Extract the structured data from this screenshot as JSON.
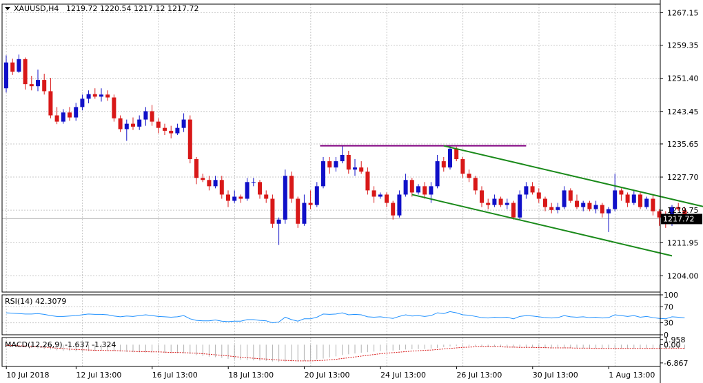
{
  "header": {
    "symbol": "XAUUSD,H4",
    "ohlc": "1219.72 1220.54 1217.12 1217.72"
  },
  "current_price_label": "1217.72",
  "colors": {
    "bull": "#1010c8",
    "bear": "#d81818",
    "grid": "#c8c8c8",
    "trend_green": "#1a8a1a",
    "resistance_purple": "#800080",
    "rsi_line": "#1e90ff",
    "macd_signal": "#d81818",
    "macd_hist": "#b0b0b0"
  },
  "chart_data": [
    {
      "type": "candlestick",
      "title": "XAUUSD,H4",
      "y_ticks": [
        "1267.15",
        "1259.35",
        "1251.40",
        "1243.45",
        "1235.65",
        "1227.70",
        "1219.75",
        "1211.95",
        "1204.00"
      ],
      "ylim": [
        1200.1,
        1269.2
      ],
      "x_ticks": [
        "10 Jul 2018",
        "12 Jul 13:00",
        "16 Jul 13:00",
        "18 Jul 13:00",
        "20 Jul 13:00",
        "24 Jul 13:00",
        "26 Jul 13:00",
        "30 Jul 13:00",
        "1 Aug 13:00"
      ],
      "grid": true,
      "candles": [
        [
          1249.0,
          1256.9,
          1248.0,
          1255.2
        ],
        [
          1255.2,
          1256.1,
          1252.2,
          1253.0
        ],
        [
          1253.0,
          1257.1,
          1252.7,
          1256.0
        ],
        [
          1256.0,
          1256.4,
          1248.7,
          1250.0
        ],
        [
          1250.0,
          1252.0,
          1248.5,
          1249.5
        ],
        [
          1249.5,
          1253.5,
          1248.3,
          1251.0
        ],
        [
          1251.0,
          1252.5,
          1247.5,
          1248.3
        ],
        [
          1248.3,
          1251.5,
          1241.8,
          1242.5
        ],
        [
          1242.5,
          1244.5,
          1240.4,
          1241.0
        ],
        [
          1241.0,
          1244.0,
          1240.5,
          1243.2
        ],
        [
          1243.2,
          1244.5,
          1241.2,
          1242.0
        ],
        [
          1242.0,
          1245.5,
          1241.2,
          1244.5
        ],
        [
          1244.5,
          1247.5,
          1243.7,
          1246.5
        ],
        [
          1246.5,
          1248.5,
          1245.4,
          1247.6
        ],
        [
          1247.6,
          1249.0,
          1246.5,
          1247.0
        ],
        [
          1247.0,
          1249.0,
          1245.8,
          1247.5
        ],
        [
          1247.5,
          1248.5,
          1246.0,
          1246.8
        ],
        [
          1246.8,
          1247.5,
          1241.0,
          1241.8
        ],
        [
          1241.8,
          1242.5,
          1238.5,
          1239.2
        ],
        [
          1239.2,
          1241.5,
          1236.4,
          1240.5
        ],
        [
          1240.5,
          1242.0,
          1239.0,
          1239.8
        ],
        [
          1239.8,
          1242.5,
          1239.0,
          1241.5
        ],
        [
          1241.5,
          1244.5,
          1240.0,
          1243.5
        ],
        [
          1243.5,
          1245.0,
          1240.0,
          1241.0
        ],
        [
          1241.0,
          1241.8,
          1238.2,
          1239.5
        ],
        [
          1239.5,
          1240.5,
          1237.8,
          1238.8
        ],
        [
          1238.8,
          1240.0,
          1237.0,
          1238.2
        ],
        [
          1238.2,
          1240.5,
          1237.8,
          1239.5
        ],
        [
          1239.5,
          1243.0,
          1238.5,
          1241.5
        ],
        [
          1241.5,
          1242.5,
          1231.0,
          1232.0
        ],
        [
          1232.0,
          1232.5,
          1226.0,
          1227.5
        ],
        [
          1227.5,
          1228.5,
          1226.5,
          1227.0
        ],
        [
          1227.0,
          1228.0,
          1224.5,
          1225.5
        ],
        [
          1225.5,
          1228.0,
          1225.0,
          1227.0
        ],
        [
          1227.0,
          1228.0,
          1222.5,
          1223.5
        ],
        [
          1223.5,
          1224.5,
          1220.5,
          1222.0
        ],
        [
          1222.0,
          1224.5,
          1221.5,
          1223.0
        ],
        [
          1223.0,
          1223.5,
          1221.5,
          1222.5
        ],
        [
          1222.5,
          1227.5,
          1222.0,
          1226.5
        ],
        [
          1226.5,
          1227.5,
          1225.5,
          1226.5
        ],
        [
          1226.5,
          1227.0,
          1222.5,
          1223.5
        ],
        [
          1223.5,
          1224.5,
          1221.5,
          1222.5
        ],
        [
          1222.5,
          1223.5,
          1215.5,
          1216.5
        ],
        [
          1216.5,
          1218.0,
          1211.4,
          1217.5
        ],
        [
          1217.5,
          1229.5,
          1216.5,
          1228.0
        ],
        [
          1228.0,
          1229.0,
          1221.5,
          1222.5
        ],
        [
          1222.5,
          1223.0,
          1215.5,
          1216.5
        ],
        [
          1216.5,
          1223.5,
          1216.0,
          1221.5
        ],
        [
          1221.5,
          1224.5,
          1220.0,
          1221.0
        ],
        [
          1221.0,
          1226.5,
          1220.5,
          1225.5
        ],
        [
          1225.5,
          1232.5,
          1225.0,
          1231.5
        ],
        [
          1231.5,
          1232.5,
          1228.5,
          1230.0
        ],
        [
          1230.0,
          1232.5,
          1229.0,
          1231.5
        ],
        [
          1231.5,
          1235.2,
          1231.0,
          1233.0
        ],
        [
          1233.0,
          1234.0,
          1228.5,
          1229.5
        ],
        [
          1229.5,
          1232.0,
          1228.0,
          1230.0
        ],
        [
          1230.0,
          1231.5,
          1228.5,
          1229.0
        ],
        [
          1229.0,
          1230.0,
          1223.5,
          1224.5
        ],
        [
          1224.5,
          1225.5,
          1221.5,
          1223.0
        ],
        [
          1223.0,
          1224.0,
          1222.5,
          1223.5
        ],
        [
          1223.5,
          1224.0,
          1220.5,
          1221.5
        ],
        [
          1221.5,
          1222.0,
          1217.5,
          1218.5
        ],
        [
          1218.5,
          1224.5,
          1218.0,
          1223.5
        ],
        [
          1223.5,
          1228.5,
          1223.0,
          1227.0
        ],
        [
          1227.0,
          1227.5,
          1223.0,
          1224.0
        ],
        [
          1224.0,
          1226.0,
          1223.5,
          1225.5
        ],
        [
          1225.5,
          1226.5,
          1222.5,
          1223.5
        ],
        [
          1223.5,
          1226.5,
          1221.5,
          1225.5
        ],
        [
          1225.5,
          1233.0,
          1225.0,
          1231.5
        ],
        [
          1231.5,
          1232.5,
          1229.0,
          1230.0
        ],
        [
          1230.0,
          1235.2,
          1229.5,
          1234.5
        ],
        [
          1234.5,
          1235.0,
          1231.5,
          1232.0
        ],
        [
          1232.0,
          1232.5,
          1227.5,
          1228.5
        ],
        [
          1228.5,
          1229.5,
          1226.5,
          1227.5
        ],
        [
          1227.5,
          1228.0,
          1223.5,
          1224.5
        ],
        [
          1224.5,
          1225.5,
          1220.5,
          1221.5
        ],
        [
          1221.5,
          1222.5,
          1220.0,
          1221.0
        ],
        [
          1221.0,
          1223.5,
          1220.5,
          1222.5
        ],
        [
          1222.5,
          1223.0,
          1220.5,
          1221.0
        ],
        [
          1221.0,
          1222.5,
          1220.0,
          1221.5
        ],
        [
          1221.5,
          1222.0,
          1217.5,
          1218.0
        ],
        [
          1218.0,
          1224.5,
          1217.5,
          1223.5
        ],
        [
          1223.5,
          1226.5,
          1222.5,
          1225.5
        ],
        [
          1225.5,
          1226.5,
          1223.5,
          1224.0
        ],
        [
          1224.0,
          1225.0,
          1221.5,
          1222.5
        ],
        [
          1222.5,
          1223.0,
          1219.5,
          1220.5
        ],
        [
          1220.5,
          1221.5,
          1219.0,
          1219.8
        ],
        [
          1219.8,
          1221.5,
          1219.0,
          1220.5
        ],
        [
          1220.5,
          1225.5,
          1220.0,
          1224.5
        ],
        [
          1224.5,
          1225.0,
          1221.5,
          1222.0
        ],
        [
          1222.0,
          1223.5,
          1220.0,
          1220.5
        ],
        [
          1220.5,
          1222.0,
          1219.5,
          1221.5
        ],
        [
          1221.5,
          1222.0,
          1219.5,
          1220.0
        ],
        [
          1220.0,
          1222.0,
          1219.0,
          1221.0
        ],
        [
          1221.0,
          1221.5,
          1218.0,
          1219.0
        ],
        [
          1219.0,
          1220.5,
          1214.5,
          1220.0
        ],
        [
          1220.0,
          1228.5,
          1219.5,
          1224.5
        ],
        [
          1224.5,
          1225.0,
          1222.0,
          1223.5
        ],
        [
          1223.5,
          1224.0,
          1220.5,
          1221.5
        ],
        [
          1221.5,
          1224.5,
          1221.0,
          1223.5
        ],
        [
          1223.5,
          1224.0,
          1220.0,
          1220.5
        ],
        [
          1220.5,
          1223.0,
          1220.0,
          1222.5
        ],
        [
          1222.5,
          1223.5,
          1218.5,
          1219.5
        ],
        [
          1219.5,
          1220.0,
          1216.0,
          1218.0
        ],
        [
          1218.0,
          1219.5,
          1215.5,
          1216.5
        ],
        [
          1216.5,
          1221.0,
          1216.0,
          1220.5
        ],
        [
          1220.5,
          1221.5,
          1219.5,
          1220.0
        ],
        [
          1219.72,
          1220.54,
          1217.12,
          1217.72
        ]
      ],
      "lines": [
        {
          "label": "resistance",
          "color": "#800080",
          "points": [
            [
              49.5,
              1235.2
            ],
            [
              82,
              1235.2
            ]
          ]
        },
        {
          "label": "channel-upper",
          "color": "#1a8a1a",
          "points": [
            [
              69,
              1235.2
            ],
            [
              110,
              1220.6
            ]
          ]
        },
        {
          "label": "channel-lower",
          "color": "#1a8a1a",
          "points": [
            [
              64,
              1223.5
            ],
            [
              105,
              1208.8
            ]
          ]
        }
      ]
    },
    {
      "type": "line",
      "title": "RSI(14) 42.3079",
      "y_ticks": [
        "100",
        "70",
        "30",
        "0"
      ],
      "ylim": [
        0,
        100
      ],
      "levels": [
        30,
        70
      ],
      "values": [
        55,
        54,
        53,
        52,
        52,
        53,
        51,
        48,
        46,
        46,
        47,
        48,
        50,
        52,
        51,
        51,
        50,
        47,
        45,
        47,
        46,
        48,
        50,
        48,
        46,
        45,
        44,
        45,
        48,
        40,
        36,
        35,
        35,
        37,
        34,
        33,
        34,
        34,
        38,
        38,
        36,
        35,
        30,
        32,
        44,
        38,
        34,
        40,
        40,
        44,
        52,
        51,
        52,
        55,
        50,
        51,
        50,
        45,
        44,
        45,
        43,
        41,
        46,
        50,
        47,
        48,
        46,
        48,
        55,
        53,
        58,
        55,
        50,
        49,
        46,
        43,
        42,
        44,
        43,
        44,
        40,
        46,
        48,
        47,
        45,
        43,
        42,
        43,
        48,
        45,
        44,
        45,
        43,
        44,
        42,
        43,
        50,
        48,
        46,
        48,
        44,
        46,
        43,
        41,
        40,
        45,
        44,
        42.3079
      ]
    },
    {
      "type": "bar",
      "title": "MACD(12,26,9) -1.637 -1.324",
      "y_ticks": [
        "1.958",
        "0.00",
        "-6.867"
      ],
      "ylim": [
        -8.2,
        2.7
      ],
      "series": [
        {
          "name": "-1.637",
          "values": [
            -0.4,
            -0.6,
            -0.8,
            -1.0,
            -1.2,
            -1.4,
            -1.6,
            -1.8,
            -2.1,
            -2.3,
            -2.4,
            -2.5,
            -2.5,
            -2.4,
            -2.4,
            -2.3,
            -2.3,
            -2.4,
            -2.6,
            -2.7,
            -2.8,
            -2.9,
            -2.9,
            -2.9,
            -3.0,
            -3.1,
            -3.2,
            -3.2,
            -3.2,
            -3.5,
            -3.9,
            -4.2,
            -4.5,
            -4.7,
            -5.0,
            -5.3,
            -5.5,
            -5.7,
            -5.8,
            -5.9,
            -6.0,
            -6.1,
            -6.3,
            -6.5,
            -6.4,
            -6.3,
            -6.3,
            -6.1,
            -5.9,
            -5.6,
            -5.2,
            -4.8,
            -4.4,
            -3.9,
            -3.6,
            -3.3,
            -3.0,
            -2.8,
            -2.6,
            -2.4,
            -2.3,
            -2.2,
            -2.0,
            -1.8,
            -1.7,
            -1.6,
            -1.6,
            -1.5,
            -1.2,
            -0.9,
            -0.6,
            -0.4,
            -0.4,
            -0.4,
            -0.5,
            -0.6,
            -0.7,
            -0.8,
            -0.9,
            -1.0,
            -1.1,
            -1.1,
            -1.1,
            -1.1,
            -1.2,
            -1.3,
            -1.4,
            -1.4,
            -1.3,
            -1.3,
            -1.4,
            -1.4,
            -1.5,
            -1.5,
            -1.6,
            -1.6,
            -1.5,
            -1.5,
            -1.5,
            -1.5,
            -1.5,
            -1.5,
            -1.6,
            -1.6,
            -1.7,
            -1.6,
            -1.6,
            -1.637
          ]
        },
        {
          "name": "-1.324",
          "values": [
            -0.2,
            -0.3,
            -0.4,
            -0.5,
            -0.6,
            -0.8,
            -0.9,
            -1.1,
            -1.3,
            -1.5,
            -1.7,
            -1.8,
            -1.9,
            -2.0,
            -2.1,
            -2.1,
            -2.2,
            -2.2,
            -2.3,
            -2.4,
            -2.5,
            -2.6,
            -2.6,
            -2.7,
            -2.7,
            -2.8,
            -2.9,
            -2.9,
            -3.0,
            -3.1,
            -3.2,
            -3.4,
            -3.6,
            -3.8,
            -4.0,
            -4.2,
            -4.5,
            -4.7,
            -4.9,
            -5.1,
            -5.3,
            -5.4,
            -5.6,
            -5.8,
            -5.9,
            -6.0,
            -6.1,
            -6.1,
            -6.1,
            -6.0,
            -5.9,
            -5.7,
            -5.5,
            -5.2,
            -4.9,
            -4.6,
            -4.3,
            -4.0,
            -3.7,
            -3.4,
            -3.2,
            -3.0,
            -2.8,
            -2.6,
            -2.4,
            -2.3,
            -2.1,
            -2.0,
            -1.8,
            -1.6,
            -1.4,
            -1.2,
            -1.0,
            -0.9,
            -0.8,
            -0.8,
            -0.8,
            -0.8,
            -0.8,
            -0.9,
            -0.9,
            -1.0,
            -1.0,
            -1.0,
            -1.1,
            -1.1,
            -1.2,
            -1.2,
            -1.2,
            -1.2,
            -1.3,
            -1.3,
            -1.3,
            -1.4,
            -1.4,
            -1.4,
            -1.4,
            -1.4,
            -1.4,
            -1.4,
            -1.4,
            -1.4,
            -1.4,
            -1.4,
            -1.4,
            -1.4,
            -1.3,
            -1.324
          ]
        }
      ]
    }
  ]
}
